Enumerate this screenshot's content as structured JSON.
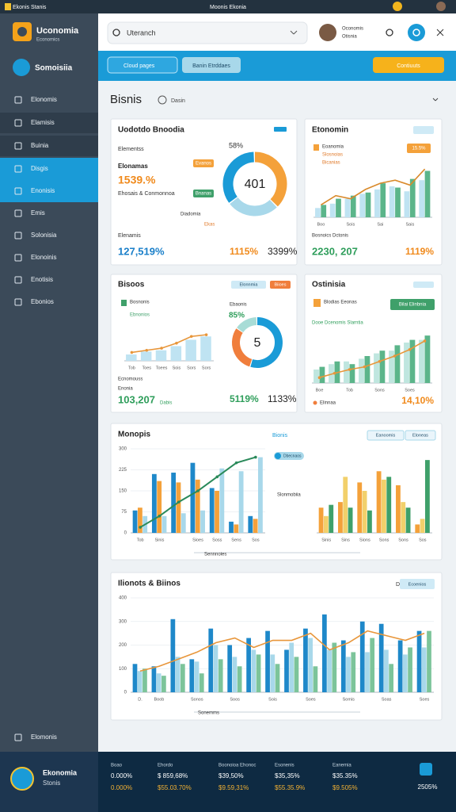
{
  "status_bar": {
    "left": "Ekonis Stanis",
    "center": "Moonis Ekonia"
  },
  "sidebar": {
    "brand": "Uconomia",
    "brand_sub": "Economics",
    "section": "Somoisiia",
    "nav": [
      "Elonomis",
      "Elamisis",
      "Buinia",
      "Disgis",
      "Enonisis",
      "Emis",
      "Solonisia",
      "Elonoinis",
      "Enotisis",
      "Ebonios"
    ],
    "footer_item": "Elomonis",
    "profile": {
      "name": "Ekonomia",
      "sub": "Stonis"
    }
  },
  "header": {
    "search": "Uteranch",
    "user": [
      "Oconomis",
      "Otisnia"
    ]
  },
  "toolbar": {
    "dropdown": "Cloud pages",
    "button": "Banin Etrddaes",
    "action": "Contiuuts"
  },
  "page_title": "Bisnis",
  "page_subtitle": "Dasin",
  "cards": [
    {
      "title": "Uodotdo Bnoodia",
      "kpi_label": "Elementss",
      "kpi_sub": "Elonamas",
      "kpi": "1539.%",
      "kpi_note": "Ehosais & Conmonnoa",
      "tags": [
        "Evanos",
        "Bnanas",
        "Diadomia",
        "Ekas"
      ],
      "donut": {
        "values": [
          38,
          27,
          35
        ],
        "colors": [
          "#f4a13a",
          "#a8d8ea",
          "#1a9bd7"
        ],
        "center": "401",
        "label": "58%"
      },
      "footer_label": "Elenamis",
      "stats": [
        "127,519%",
        "1115%",
        "3399%"
      ]
    },
    {
      "title": "Etonomin",
      "legend": [
        "Eoanomia",
        "Slosnoias",
        "Bicanias"
      ],
      "badge": "15.5%",
      "chart": {
        "type": "bar",
        "categories": [
          "Boo",
          null,
          "Sois",
          null,
          "Sai",
          null,
          "Sais",
          null
        ],
        "ylim": [
          0,
          100
        ],
        "series": [
          {
            "color": "#bfe3f2",
            "values": [
              15,
              22,
              30,
              38,
              45,
              50,
              42,
              60
            ]
          },
          {
            "color": "#5bb58a",
            "values": [
              20,
              30,
              35,
              40,
              55,
              48,
              62,
              75
            ]
          }
        ],
        "line": {
          "color": "#d98a2b",
          "values": [
            20,
            35,
            30,
            45,
            55,
            60,
            52,
            78
          ]
        }
      },
      "footer_label": "Bosnoics Dctonis",
      "stats": [
        "2230, 207",
        "1119%"
      ]
    },
    {
      "title": "Bisoos",
      "tabs": [
        "Elonnmia",
        "Biioes"
      ],
      "legend": [
        "Bosnonis",
        "Ebnonios"
      ],
      "chart": {
        "type": "bar",
        "categories": [
          "Tob",
          "Toes",
          "Toees",
          "Sois",
          "Sors",
          "Sors"
        ],
        "ylim": [
          0,
          100
        ],
        "series": [
          {
            "color": "#bfe3f2",
            "values": [
              15,
              22,
              25,
              35,
              50,
              58
            ]
          }
        ],
        "line": {
          "color": "#e8963a",
          "values": [
            20,
            25,
            30,
            42,
            58,
            62
          ]
        }
      },
      "donut": {
        "values": [
          55,
          30,
          15
        ],
        "colors": [
          "#1a9bd7",
          "#f07e3c",
          "#a8dcd6"
        ],
        "center": "5",
        "label": "85%",
        "sublabel": "Ebaonis"
      },
      "footer_label": "Ecnomouss",
      "footer_sub": "Enonia",
      "stats": [
        "103,207",
        "5119%",
        "1133%"
      ],
      "stat_note": "Dabis"
    },
    {
      "title": "Ostinisia",
      "legend": [
        "Blodias Eeonas",
        "Dooe Dcenomis Slarntia"
      ],
      "badge": "Bilai Elinbnia",
      "chart": {
        "type": "bar",
        "categories": [
          "Boe",
          null,
          "Tob",
          null,
          "Sons",
          null,
          "Soes",
          null
        ],
        "ylim": [
          0,
          100
        ],
        "series": [
          {
            "color": "#bfe6df",
            "values": [
              25,
              35,
              40,
              45,
              55,
              60,
              75,
              80
            ]
          },
          {
            "color": "#5bb58a",
            "values": [
              30,
              40,
              35,
              50,
              60,
              70,
              80,
              88
            ]
          }
        ],
        "line": {
          "color": "#e8963a",
          "values": [
            10,
            18,
            25,
            30,
            40,
            50,
            62,
            78
          ]
        }
      },
      "footer_label": "Elinnaa",
      "stats": [
        "14,10%"
      ]
    },
    {
      "title": "Monopis",
      "subtitle": "Bionis",
      "tabs": [
        "Eanoomis",
        "Eloneas"
      ],
      "chart": {
        "type": "bar",
        "categories": [
          "Tob",
          "Sinis",
          null,
          "Sioes",
          "Soss",
          "Sens",
          "Sos"
        ],
        "ylim": [
          0,
          300
        ],
        "yticks": [
          0,
          75,
          150,
          225,
          300
        ],
        "grid": true,
        "series": [
          {
            "color": "#1e88c9",
            "values": [
              80,
              210,
              215,
              250,
              160,
              40,
              60
            ]
          },
          {
            "color": "#f4a13a",
            "values": [
              90,
              185,
              180,
              190,
              150,
              30,
              50
            ]
          },
          {
            "color": "#a8d8ea",
            "values": [
              60,
              60,
              70,
              80,
              230,
              220,
              270
            ]
          }
        ],
        "line": {
          "color": "#2a8a5a",
          "values": [
            20,
            60,
            110,
            150,
            200,
            250,
            270
          ]
        }
      },
      "chart2": {
        "type": "bar",
        "categories": [
          "Sinis",
          "Sins",
          "Sions",
          "Sons",
          "Sons",
          "Sos"
        ],
        "ylim": [
          0,
          300
        ],
        "grid": true,
        "series": [
          {
            "color": "#f4a13a",
            "values": [
              90,
              110,
              180,
              220,
              170,
              30
            ]
          },
          {
            "color": "#f2d06b",
            "values": [
              60,
              200,
              150,
              190,
              110,
              50
            ]
          },
          {
            "color": "#3fa06a",
            "values": [
              100,
              90,
              80,
              200,
              90,
              260
            ]
          }
        ]
      },
      "callout": "Dbecnaos",
      "legend": "Slonmobiia",
      "scroll_label": "Sennnoies"
    },
    {
      "title": "Ilionots & Biinos",
      "tag": "Daoos",
      "tab": "Ecoenios",
      "chart": {
        "type": "bar",
        "categories": [
          "D.",
          "Boob",
          null,
          "Sonos",
          null,
          "Soos",
          null,
          "Sois",
          null,
          "Soes",
          null,
          "Somis",
          null,
          "Soas",
          null,
          "Soes"
        ],
        "ylim": [
          0,
          400
        ],
        "yticks": [
          0,
          100,
          200,
          300,
          400
        ],
        "grid": true,
        "series": [
          {
            "color": "#1e88c9",
            "values": [
              120,
              110,
              310,
              140,
              270,
              200,
              230,
              260,
              180,
              270,
              330,
              220,
              300,
              290,
              220,
              260
            ]
          },
          {
            "color": "#a8d8ea",
            "values": [
              90,
              80,
              150,
              130,
              200,
              150,
              180,
              160,
              210,
              230,
              180,
              150,
              170,
              180,
              160,
              190
            ]
          },
          {
            "color": "#7cc49a",
            "values": [
              100,
              70,
              120,
              80,
              140,
              110,
              160,
              120,
              150,
              110,
              210,
              170,
              230,
              120,
              190,
              260
            ]
          }
        ],
        "line": {
          "color": "#e8963a",
          "values": [
            90,
            110,
            140,
            170,
            210,
            230,
            190,
            220,
            220,
            250,
            180,
            210,
            260,
            240,
            220,
            250
          ]
        }
      },
      "scroll_label": "Sonemms"
    }
  ],
  "footer_stats": [
    {
      "label": "Boao",
      "lines": [
        "0.000%",
        "0.000%"
      ]
    },
    {
      "label": "Ehordo",
      "lines": [
        "$ 859,68%",
        "$55.03.70%"
      ]
    },
    {
      "label": "Boonoioa Ehonoc",
      "lines": [
        "$39,50%",
        "$9.59,31%"
      ]
    },
    {
      "label": "Esonenis",
      "lines": [
        "$35,35%",
        "$55.35.9%"
      ]
    },
    {
      "label": "Eanemia",
      "lines": [
        "$35.35%",
        "$9.505%"
      ]
    }
  ],
  "footer_extra": "2505%"
}
